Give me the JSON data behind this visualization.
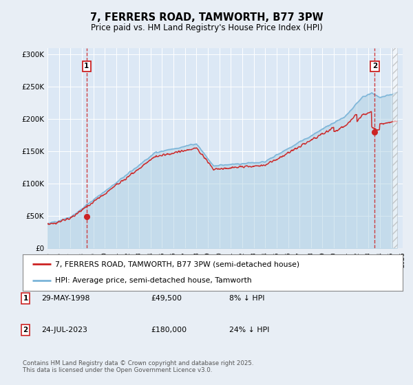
{
  "title": "7, FERRERS ROAD, TAMWORTH, B77 3PW",
  "subtitle": "Price paid vs. HM Land Registry's House Price Index (HPI)",
  "background_color": "#e8eef5",
  "plot_bg_color": "#dce8f5",
  "hpi_color": "#7ab4d8",
  "hpi_fill_color": "#a8cce0",
  "price_color": "#cc2222",
  "ylim": [
    0,
    310000
  ],
  "yticks": [
    0,
    50000,
    100000,
    150000,
    200000,
    250000,
    300000
  ],
  "ytick_labels": [
    "£0",
    "£50K",
    "£100K",
    "£150K",
    "£200K",
    "£250K",
    "£300K"
  ],
  "xstart": 1995,
  "xend": 2026,
  "transaction1_date": 1998.41,
  "transaction1_price": 49500,
  "transaction2_date": 2023.56,
  "transaction2_price": 180000,
  "legend_line1": "7, FERRERS ROAD, TAMWORTH, B77 3PW (semi-detached house)",
  "legend_line2": "HPI: Average price, semi-detached house, Tamworth",
  "transaction1_text": "29-MAY-1998",
  "transaction1_amount": "£49,500",
  "transaction1_hpi": "8% ↓ HPI",
  "transaction2_text": "24-JUL-2023",
  "transaction2_amount": "£180,000",
  "transaction2_hpi": "24% ↓ HPI",
  "footer": "Contains HM Land Registry data © Crown copyright and database right 2025.\nThis data is licensed under the Open Government Licence v3.0."
}
